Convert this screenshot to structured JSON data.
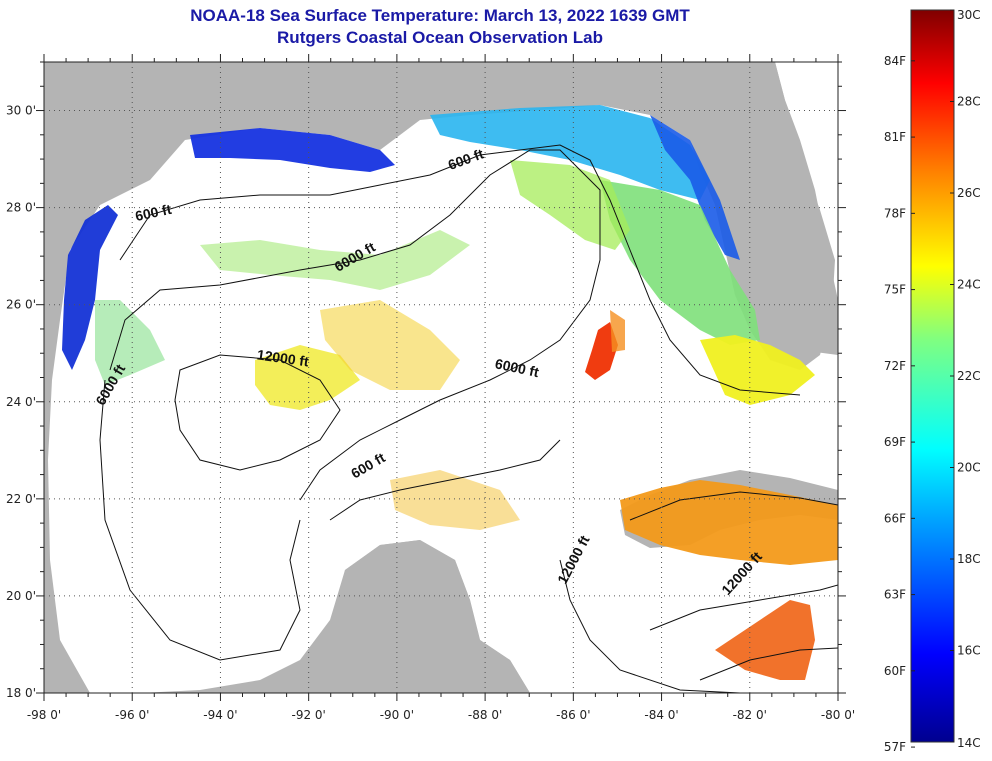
{
  "title": {
    "line1": "NOAA-18 Sea Surface Temperature:  March 13, 2022 1639 GMT",
    "line2": "Rutgers Coastal Ocean Observation Lab"
  },
  "map": {
    "lon_range": [
      -98,
      -80
    ],
    "lat_range": [
      18,
      31
    ],
    "x_ticks": [
      {
        "lon": -98,
        "label": "-98 0'"
      },
      {
        "lon": -96,
        "label": "-96 0'"
      },
      {
        "lon": -94,
        "label": "-94 0'"
      },
      {
        "lon": -92,
        "label": "-92 0'"
      },
      {
        "lon": -90,
        "label": "-90 0'"
      },
      {
        "lon": -88,
        "label": "-88 0'"
      },
      {
        "lon": -86,
        "label": "-86 0'"
      },
      {
        "lon": -84,
        "label": "-84 0'"
      },
      {
        "lon": -82,
        "label": "-82 0'"
      },
      {
        "lon": -80,
        "label": "-80 0'"
      }
    ],
    "y_ticks": [
      {
        "lat": 30,
        "label": "30 0'"
      },
      {
        "lat": 28,
        "label": "28 0'"
      },
      {
        "lat": 26,
        "label": "26 0'"
      },
      {
        "lat": 24,
        "label": "24 0'"
      },
      {
        "lat": 22,
        "label": "22 0'"
      },
      {
        "lat": 20,
        "label": "20 0'"
      },
      {
        "lat": 18,
        "label": "18 0'"
      }
    ],
    "grid": "dotted",
    "land_color": "#b4b4b4",
    "contour_labels": [
      {
        "text": "600 ft",
        "lon": -95.5,
        "lat": 27.8
      },
      {
        "text": "6000 ft",
        "lon": -90.9,
        "lat": 26.9
      },
      {
        "text": "600 ft",
        "lon": -88.4,
        "lat": 28.9
      },
      {
        "text": "12000 ft",
        "lon": -92.6,
        "lat": 24.8
      },
      {
        "text": "6000 ft",
        "lon": -96.4,
        "lat": 24.3
      },
      {
        "text": "6000 ft",
        "lon": -87.3,
        "lat": 24.6
      },
      {
        "text": "600 ft",
        "lon": -90.6,
        "lat": 22.6
      },
      {
        "text": "12000 ft",
        "lon": -85.9,
        "lat": 20.7
      },
      {
        "text": "12000 ft",
        "lon": -82.1,
        "lat": 20.4
      }
    ]
  },
  "colorbar": {
    "celsius_ticks": [
      {
        "value": 30,
        "label": "30C"
      },
      {
        "value": 28,
        "label": "28C"
      },
      {
        "value": 26,
        "label": "26C"
      },
      {
        "value": 24,
        "label": "24C"
      },
      {
        "value": 22,
        "label": "22C"
      },
      {
        "value": 20,
        "label": "20C"
      },
      {
        "value": 18,
        "label": "18C"
      },
      {
        "value": 16,
        "label": "16C"
      },
      {
        "value": 14,
        "label": "14C"
      }
    ],
    "fahrenheit_ticks": [
      {
        "value": 84,
        "label": "84F"
      },
      {
        "value": 81,
        "label": "81F"
      },
      {
        "value": 78,
        "label": "78F"
      },
      {
        "value": 75,
        "label": "75F"
      },
      {
        "value": 72,
        "label": "72F"
      },
      {
        "value": 69,
        "label": "69F"
      },
      {
        "value": 66,
        "label": "66F"
      },
      {
        "value": 63,
        "label": "63F"
      },
      {
        "value": 60,
        "label": "60F"
      },
      {
        "value": 57,
        "label": "57F"
      }
    ],
    "range_c": [
      14,
      30
    ],
    "colors": [
      "#00008f",
      "#0000ff",
      "#00a0ff",
      "#00ffff",
      "#80ff80",
      "#ffff00",
      "#ff8000",
      "#ff0000",
      "#800000"
    ]
  }
}
